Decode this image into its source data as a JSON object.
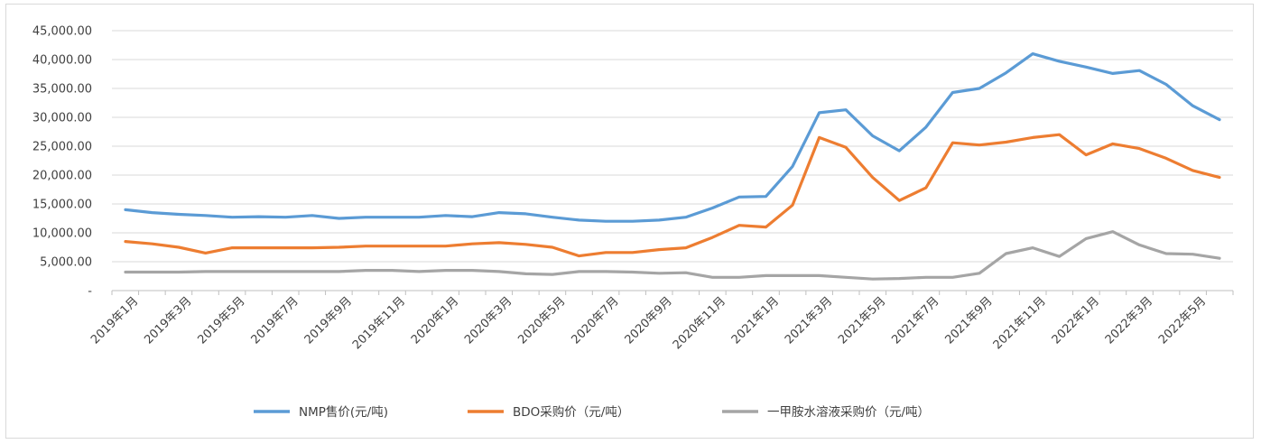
{
  "chart_data": {
    "type": "line",
    "title": "",
    "xlabel": "",
    "ylabel": "",
    "ylim": [
      0,
      45000
    ],
    "y_ticks": [
      "-",
      "5,000.00",
      "10,000.00",
      "15,000.00",
      "20,000.00",
      "25,000.00",
      "30,000.00",
      "35,000.00",
      "40,000.00",
      "45,000.00"
    ],
    "y_tick_values": [
      0,
      5000,
      10000,
      15000,
      20000,
      25000,
      30000,
      35000,
      40000,
      45000
    ],
    "grid": true,
    "legend_position": "bottom",
    "x": [
      "2019年1月",
      "2019年2月",
      "2019年3月",
      "2019年4月",
      "2019年5月",
      "2019年6月",
      "2019年7月",
      "2019年8月",
      "2019年9月",
      "2019年10月",
      "2019年11月",
      "2019年12月",
      "2020年1月",
      "2020年2月",
      "2020年3月",
      "2020年4月",
      "2020年5月",
      "2020年6月",
      "2020年7月",
      "2020年8月",
      "2020年9月",
      "2020年10月",
      "2020年11月",
      "2020年12月",
      "2021年1月",
      "2021年2月",
      "2021年3月",
      "2021年4月",
      "2021年5月",
      "2021年6月",
      "2021年7月",
      "2021年8月",
      "2021年9月",
      "2021年10月",
      "2021年11月",
      "2021年12月",
      "2022年1月",
      "2022年2月",
      "2022年3月",
      "2022年4月",
      "2022年5月",
      "2022年6月"
    ],
    "x_tick_labels": [
      "2019年1月",
      "2019年3月",
      "2019年5月",
      "2019年7月",
      "2019年9月",
      "2019年11月",
      "2020年1月",
      "2020年3月",
      "2020年5月",
      "2020年7月",
      "2020年9月",
      "2020年11月",
      "2021年1月",
      "2021年3月",
      "2021年5月",
      "2021年7月",
      "2021年9月",
      "2021年11月",
      "2022年1月",
      "2022年3月",
      "2022年5月"
    ],
    "series": [
      {
        "name": "NMP售价(元/吨)",
        "color": "#5b9bd5",
        "values": [
          14000,
          13500,
          13200,
          13000,
          12700,
          12800,
          12700,
          13000,
          12500,
          12700,
          12700,
          12700,
          13000,
          12800,
          13500,
          13300,
          12700,
          12200,
          12000,
          12000,
          12200,
          12700,
          14300,
          16200,
          16300,
          21500,
          30800,
          31300,
          26800,
          24200,
          28300,
          34300,
          35000,
          37700,
          41000,
          39700,
          38700,
          37600,
          38100,
          35700,
          32000,
          29600
        ]
      },
      {
        "name": "BDO采购价（元/吨）",
        "color": "#ed7d31",
        "values": [
          8500,
          8100,
          7500,
          6500,
          7400,
          7400,
          7400,
          7400,
          7500,
          7700,
          7700,
          7700,
          7700,
          8100,
          8300,
          8000,
          7500,
          6000,
          6600,
          6600,
          7100,
          7400,
          9200,
          11300,
          11000,
          14800,
          26500,
          24800,
          19600,
          15600,
          17800,
          25600,
          25200,
          25700,
          26500,
          27000,
          23500,
          25400,
          24600,
          22900,
          20800,
          19600
        ]
      },
      {
        "name": "一甲胺水溶液采购价（元/吨）",
        "color": "#a5a5a5",
        "values": [
          3200,
          3200,
          3200,
          3300,
          3300,
          3300,
          3300,
          3300,
          3300,
          3500,
          3500,
          3300,
          3500,
          3500,
          3300,
          2900,
          2800,
          3300,
          3300,
          3200,
          3000,
          3100,
          2300,
          2300,
          2600,
          2600,
          2600,
          2300,
          2000,
          2100,
          2300,
          2300,
          3000,
          6400,
          7400,
          5900,
          9000,
          10200,
          7900,
          6400,
          6300,
          5600
        ]
      }
    ]
  }
}
